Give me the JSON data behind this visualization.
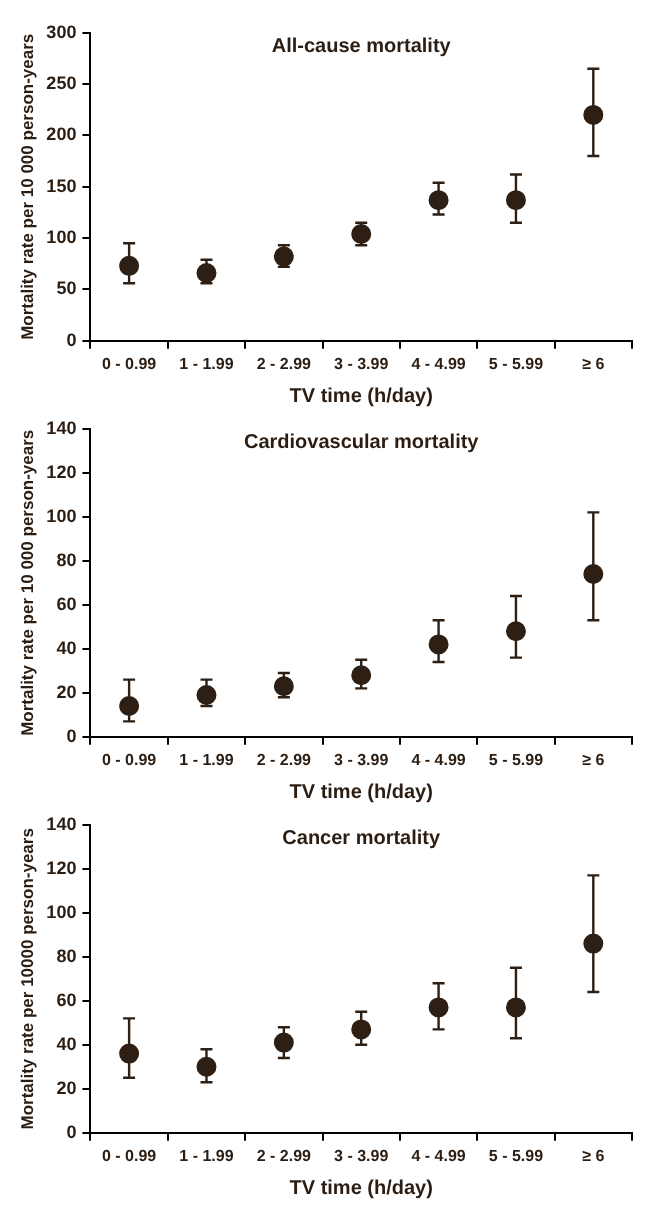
{
  "chart_data": [
    {
      "type": "scatter",
      "title": "All-cause mortality",
      "xlabel": "TV time (h/day)",
      "ylabel": "Mortality rate per 10 000 person-years",
      "categories": [
        "0 - 0.99",
        "1 - 1.99",
        "2 - 2.99",
        "3 - 3.99",
        "4 - 4.99",
        "5 - 5.99",
        "≥ 6"
      ],
      "series": [
        {
          "color": "#2e1f14",
          "values": [
            73,
            66,
            82,
            104,
            137,
            137,
            220
          ],
          "errors": [
            [
              56,
              95
            ],
            [
              56,
              79
            ],
            [
              72,
              93
            ],
            [
              93,
              115
            ],
            [
              123,
              154
            ],
            [
              115,
              162
            ],
            [
              180,
              265
            ]
          ]
        }
      ],
      "ylim": [
        0,
        300
      ],
      "yticks": [
        0,
        50,
        100,
        150,
        200,
        250,
        300
      ],
      "grid": false,
      "legend": false,
      "marker": "circle"
    },
    {
      "type": "scatter",
      "title": "Cardiovascular mortality",
      "xlabel": "TV time (h/day)",
      "ylabel": "Mortality rate per 10 000 person-years",
      "categories": [
        "0 - 0.99",
        "1 - 1.99",
        "2 - 2.99",
        "3 - 3.99",
        "4 - 4.99",
        "5 - 5.99",
        "≥ 6"
      ],
      "series": [
        {
          "color": "#2e1f14",
          "values": [
            14,
            19,
            23,
            28,
            42,
            48,
            74
          ],
          "errors": [
            [
              7,
              26
            ],
            [
              14,
              26
            ],
            [
              18,
              29
            ],
            [
              22,
              35
            ],
            [
              34,
              53
            ],
            [
              36,
              64
            ],
            [
              53,
              102
            ]
          ]
        }
      ],
      "ylim": [
        0,
        140
      ],
      "yticks": [
        0,
        20,
        40,
        60,
        80,
        100,
        120,
        140
      ],
      "grid": false,
      "legend": false,
      "marker": "circle"
    },
    {
      "type": "scatter",
      "title": "Cancer mortality",
      "xlabel": "TV time (h/day)",
      "ylabel": "Mortality rate per 10000 person-years",
      "categories": [
        "0 - 0.99",
        "1 - 1.99",
        "2 - 2.99",
        "3 - 3.99",
        "4 - 4.99",
        "5 - 5.99",
        "≥ 6"
      ],
      "series": [
        {
          "color": "#2e1f14",
          "values": [
            36,
            30,
            41,
            47,
            57,
            57,
            86
          ],
          "errors": [
            [
              25,
              52
            ],
            [
              23,
              38
            ],
            [
              34,
              48
            ],
            [
              40,
              55
            ],
            [
              47,
              68
            ],
            [
              43,
              75
            ],
            [
              64,
              117
            ]
          ]
        }
      ],
      "ylim": [
        0,
        140
      ],
      "yticks": [
        0,
        20,
        40,
        60,
        80,
        100,
        120,
        140
      ],
      "grid": false,
      "legend": false,
      "marker": "circle"
    }
  ]
}
